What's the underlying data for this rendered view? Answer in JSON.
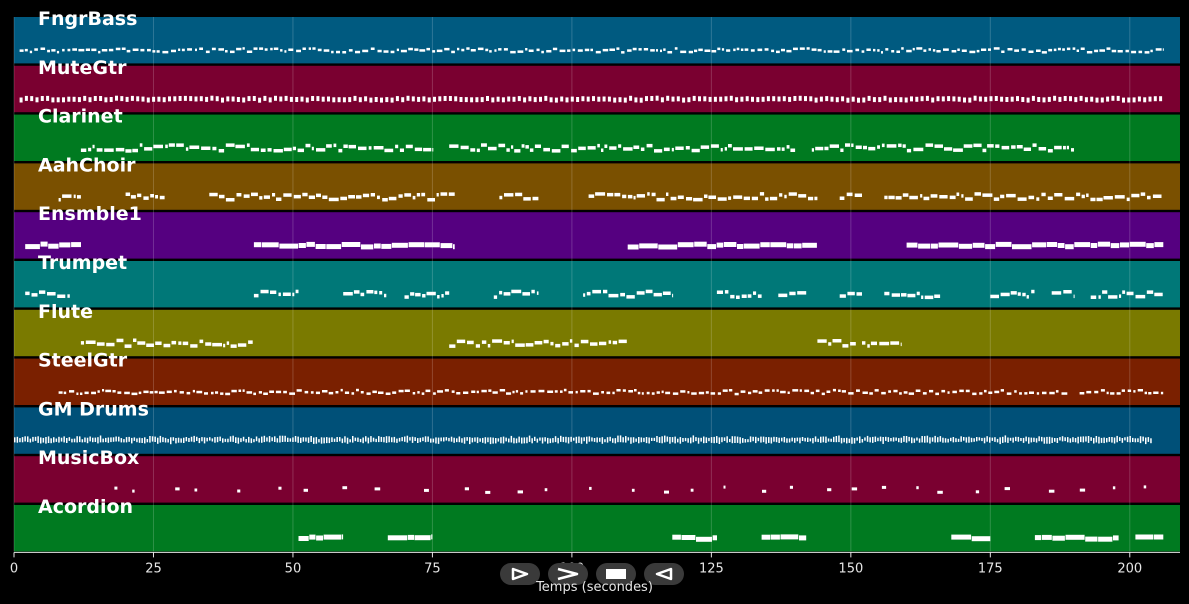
{
  "axis": {
    "xlabel": "Temps (secondes)",
    "x_range": [
      0,
      209
    ],
    "ticks": [
      0,
      25,
      50,
      75,
      100,
      125,
      150,
      175,
      200
    ],
    "grid": true
  },
  "tracks": [
    {
      "name": "FngrBass",
      "color": "#005a80",
      "pattern": "dense",
      "segments": [
        [
          1,
          206
        ]
      ]
    },
    {
      "name": "MuteGtr",
      "color": "#7a0030",
      "pattern": "comb",
      "segments": [
        [
          1,
          206
        ]
      ]
    },
    {
      "name": "Clarinet",
      "color": "#007a20",
      "pattern": "melody",
      "segments": [
        [
          12,
          75
        ],
        [
          78,
          140
        ],
        [
          143,
          190
        ]
      ]
    },
    {
      "name": "AahChoir",
      "color": "#7a5000",
      "pattern": "melody",
      "segments": [
        [
          8,
          12
        ],
        [
          20,
          27
        ],
        [
          35,
          79
        ],
        [
          87,
          94
        ],
        [
          103,
          144
        ],
        [
          148,
          152
        ],
        [
          156,
          206
        ]
      ]
    },
    {
      "name": "Ensmble1",
      "color": "#550080",
      "pattern": "blocks",
      "segments": [
        [
          2,
          12
        ],
        [
          43,
          79
        ],
        [
          110,
          144
        ],
        [
          160,
          206
        ]
      ]
    },
    {
      "name": "Trumpet",
      "color": "#007878",
      "pattern": "melody",
      "segments": [
        [
          2,
          10
        ],
        [
          43,
          51
        ],
        [
          59,
          67
        ],
        [
          70,
          78
        ],
        [
          86,
          94
        ],
        [
          102,
          118
        ],
        [
          126,
          134
        ],
        [
          137,
          142
        ],
        [
          148,
          152
        ],
        [
          156,
          166
        ],
        [
          175,
          183
        ],
        [
          186,
          190
        ],
        [
          193,
          206
        ]
      ]
    },
    {
      "name": "Flute",
      "color": "#7a7a00",
      "pattern": "melody",
      "segments": [
        [
          12,
          43
        ],
        [
          78,
          110
        ],
        [
          144,
          151
        ],
        [
          152,
          159
        ]
      ]
    },
    {
      "name": "SteelGtr",
      "color": "#7a2000",
      "pattern": "dense",
      "segments": [
        [
          8,
          189
        ],
        [
          191,
          206
        ]
      ]
    },
    {
      "name": "GM Drums",
      "color": "#005078",
      "pattern": "drums",
      "segments": [
        [
          0,
          204
        ]
      ]
    },
    {
      "name": "MusicBox",
      "color": "#7a0030",
      "pattern": "sparse",
      "segments": [
        [
          18,
          206
        ]
      ]
    },
    {
      "name": "Acordion",
      "color": "#007a20",
      "pattern": "blocks",
      "segments": [
        [
          51,
          59
        ],
        [
          67,
          75
        ],
        [
          118,
          126
        ],
        [
          134,
          142
        ],
        [
          168,
          175
        ],
        [
          183,
          198
        ],
        [
          201,
          206
        ]
      ]
    }
  ],
  "controls": [
    {
      "id": "play",
      "icon": "play-icon"
    },
    {
      "id": "forward",
      "icon": "forward-icon"
    },
    {
      "id": "stop",
      "icon": "stop-icon"
    },
    {
      "id": "rewind",
      "icon": "rewind-icon"
    }
  ]
}
